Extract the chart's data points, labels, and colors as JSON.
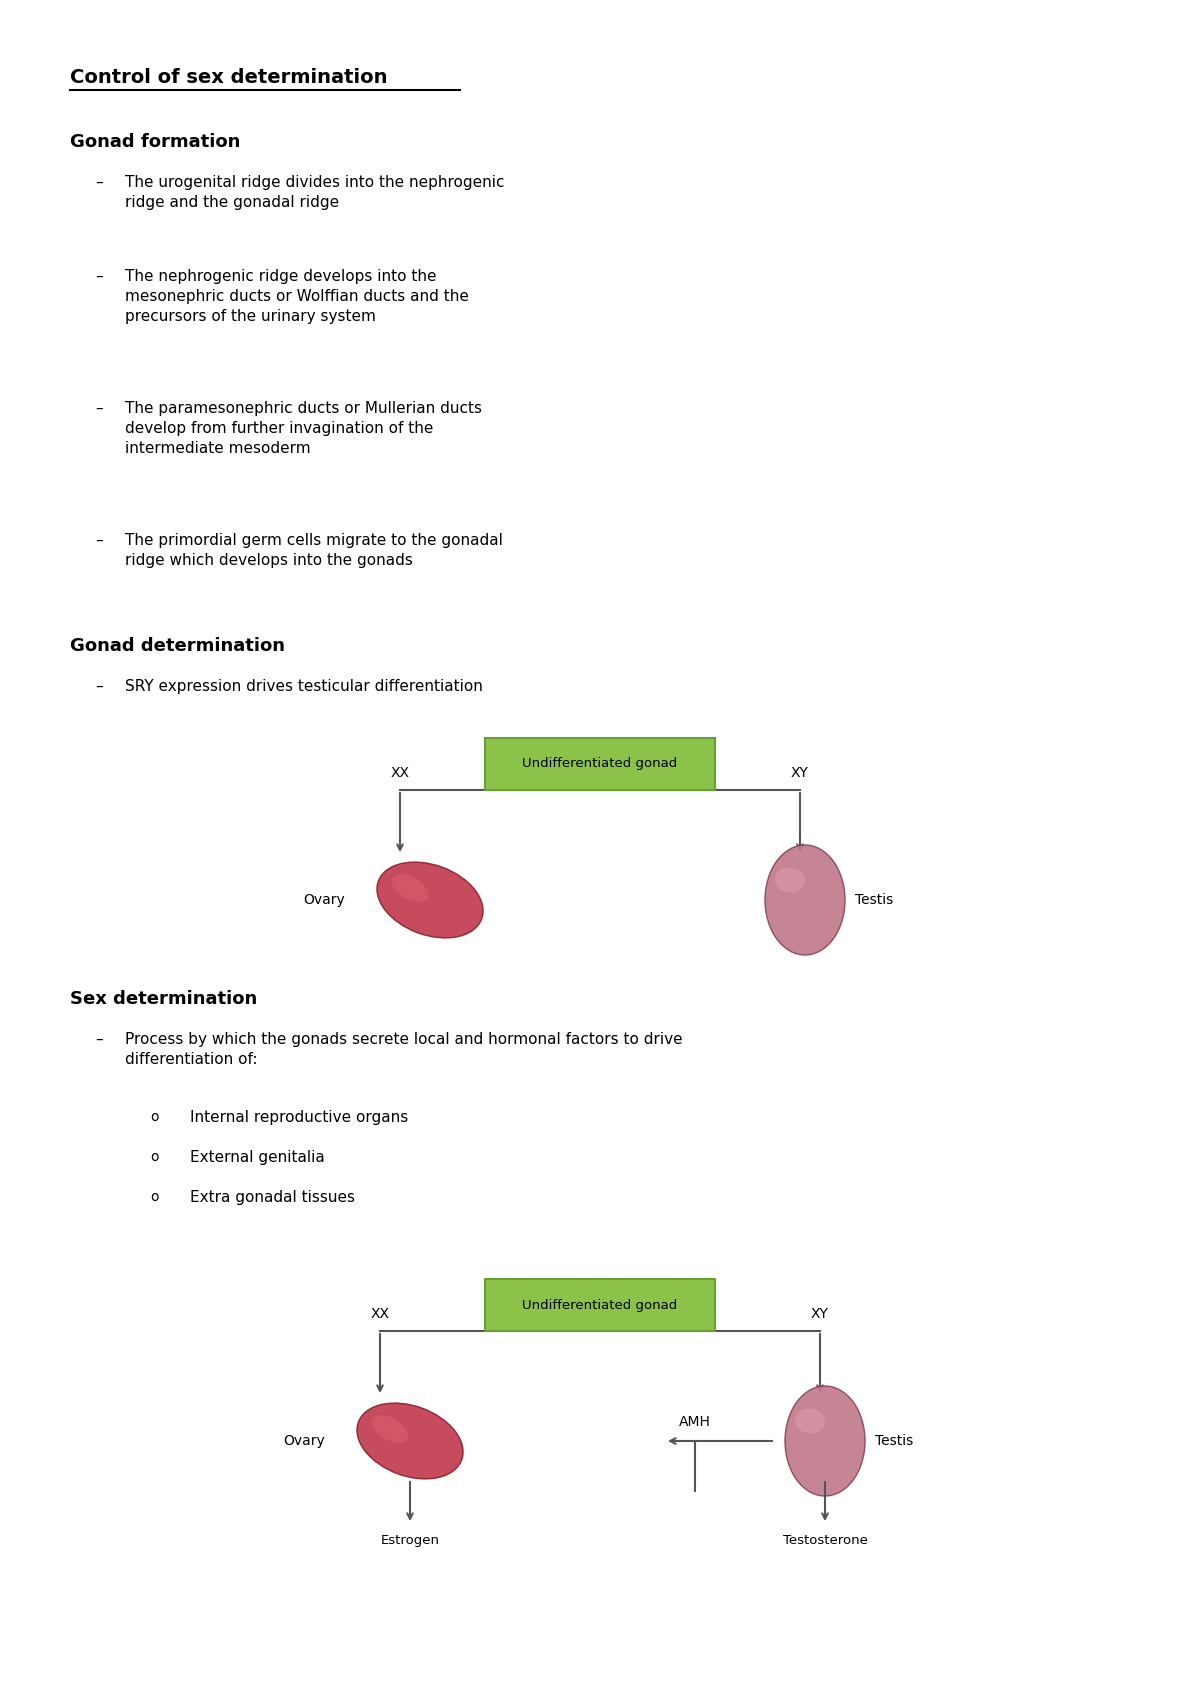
{
  "bg_color": "#ffffff",
  "title": "Control of sex determination",
  "section1_header": "Gonad formation",
  "section1_bullets": [
    "The urogenital ridge divides into the nephrogenic\nridge and the gonadal ridge",
    "The nephrogenic ridge develops into the\nmesonephric ducts or Wolffian ducts and the\nprecursors of the urinary system",
    "The paramesonephric ducts or Mullerian ducts\ndevelop from further invagination of the\nintermediate mesoderm",
    "The primordial germ cells migrate to the gonadal\nridge which develops into the gonads"
  ],
  "section2_header": "Gonad determination",
  "section2_bullets": [
    "SRY expression drives testicular differentiation"
  ],
  "section3_header": "Sex determination",
  "section3_bullets": [
    "Process by which the gonads secrete local and hormonal factors to drive\ndifferentiation of:"
  ],
  "section3_sub_bullets": [
    "Internal reproductive organs",
    "External genitalia",
    "Extra gonadal tissues"
  ],
  "diagram1_box_text": "Undifferentiated gonad",
  "diagram1_left_label": "XX",
  "diagram1_right_label": "XY",
  "diagram1_left_gonad": "Ovary",
  "diagram1_right_gonad": "Testis",
  "diagram2_box_text": "Undifferentiated gonad",
  "diagram2_left_label": "XX",
  "diagram2_right_label": "XY",
  "diagram2_left_gonad": "Ovary",
  "diagram2_left_hormone": "Estrogen",
  "diagram2_middle_label": "AMH",
  "diagram2_right_gonad": "Testis",
  "diagram2_right_hormone": "Testosterone",
  "box_fill": "#8bc34a",
  "box_edge": "#6a9e35",
  "line_color": "#555555",
  "text_color": "#000000",
  "header_fontsize": 13,
  "body_fontsize": 11,
  "title_fontsize": 14
}
